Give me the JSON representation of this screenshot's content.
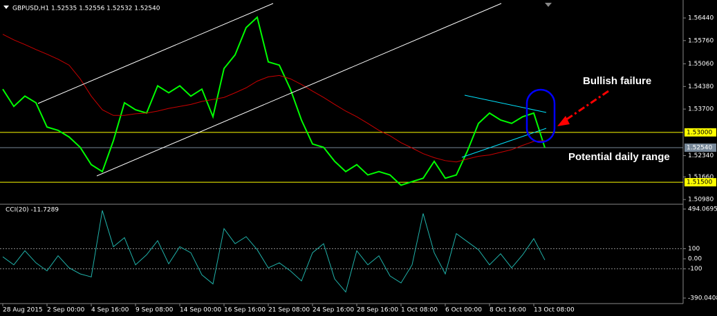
{
  "chart_data": [
    {
      "type": "line",
      "title": "GBPUSD,H1  1.52535 1.52556 1.52532 1.52540",
      "ylim": [
        1.5086,
        1.5698
      ],
      "yticks": [
        {
          "value": 1.5644,
          "label": "1.56440"
        },
        {
          "value": 1.5576,
          "label": "1.55760"
        },
        {
          "value": 1.5506,
          "label": "1.55060"
        },
        {
          "value": 1.5438,
          "label": "1.54380"
        },
        {
          "value": 1.537,
          "label": "1.53700"
        },
        {
          "value": 1.523,
          "label": "1.52340"
        },
        {
          "value": 1.5166,
          "label": "1.51660"
        },
        {
          "value": 1.5098,
          "label": "1.50980"
        }
      ],
      "levels": [
        {
          "value": 1.53,
          "label": "1.53000",
          "color": "#ffff00"
        },
        {
          "value": 1.5254,
          "label": "1.52540",
          "color": "#778899"
        },
        {
          "value": 1.515,
          "label": "1.51500",
          "color": "#ffff00"
        }
      ],
      "series": [
        {
          "color": "#00ff00",
          "values": [
            1.543,
            1.5378,
            1.5409,
            1.5389,
            1.5316,
            1.5306,
            1.5286,
            1.5255,
            1.5203,
            1.5182,
            1.5275,
            1.5389,
            1.5368,
            1.5358,
            1.544,
            1.5419,
            1.544,
            1.5409,
            1.543,
            1.5347,
            1.5492,
            1.5533,
            1.5615,
            1.5646,
            1.5512,
            1.5502,
            1.543,
            1.5337,
            1.5265,
            1.5255,
            1.5213,
            1.5182,
            1.5203,
            1.5172,
            1.5182,
            1.5172,
            1.5141,
            1.5152,
            1.5162,
            1.5213,
            1.5162,
            1.5172,
            1.5244,
            1.5327,
            1.5358,
            1.5337,
            1.5327,
            1.5347,
            1.5358,
            1.5254
          ]
        },
        {
          "color": "#cc0000",
          "values": [
            1.5595,
            1.5578,
            1.5564,
            1.5549,
            1.5535,
            1.552,
            1.5502,
            1.5461,
            1.5409,
            1.5368,
            1.5351,
            1.5351,
            1.5356,
            1.5358,
            1.5364,
            1.5372,
            1.5378,
            1.5384,
            1.5393,
            1.5399,
            1.5405,
            1.5419,
            1.5434,
            1.5454,
            1.5467,
            1.5471,
            1.5461,
            1.5444,
            1.5424,
            1.5405,
            1.5384,
            1.5364,
            1.5347,
            1.5327,
            1.5306,
            1.529,
            1.5269,
            1.5253,
            1.5236,
            1.5224,
            1.5215,
            1.5211,
            1.522,
            1.5228,
            1.5232,
            1.524,
            1.5248,
            1.5261,
            1.5273,
            1.5275
          ]
        }
      ],
      "annotations": [
        "Bullish failure",
        "Potential daily range"
      ]
    },
    {
      "type": "line",
      "title": "CCI(20) -11.7289",
      "ylim": [
        -390.0408,
        494.0695
      ],
      "yticks": [
        494.0695,
        100,
        {
          "value": 0,
          "label": "0.00"
        },
        -100,
        -390.0408
      ],
      "categories": [
        "28 Aug 2015",
        null,
        null,
        null,
        "2 Sep 00:00",
        null,
        null,
        null,
        "4 Sep 16:00",
        null,
        null,
        null,
        "9 Sep 08:00",
        null,
        null,
        null,
        "14 Sep 00:00",
        null,
        null,
        null,
        "16 Sep 16:00",
        null,
        null,
        null,
        "21 Sep 08:00",
        null,
        null,
        null,
        "24 Sep 16:00",
        null,
        null,
        null,
        "28 Sep 16:00",
        null,
        null,
        null,
        "1 Oct 08:00",
        null,
        null,
        null,
        "6 Oct 00:00",
        null,
        null,
        null,
        "8 Oct 16:00",
        null,
        null,
        null,
        "13 Oct 08:00",
        null
      ],
      "series": [
        {
          "color": "#20b2aa",
          "values": [
            20,
            -60,
            80,
            -40,
            -120,
            30,
            -90,
            -150,
            -180,
            480,
            120,
            210,
            -60,
            40,
            180,
            -50,
            120,
            60,
            -160,
            -250,
            300,
            150,
            220,
            90,
            -90,
            -40,
            -120,
            -220,
            60,
            150,
            -200,
            -330,
            80,
            -60,
            30,
            -170,
            -240,
            -60,
            450,
            60,
            -150,
            250,
            170,
            90,
            -60,
            50,
            -90,
            40,
            200,
            -11.7289
          ]
        }
      ]
    }
  ]
}
